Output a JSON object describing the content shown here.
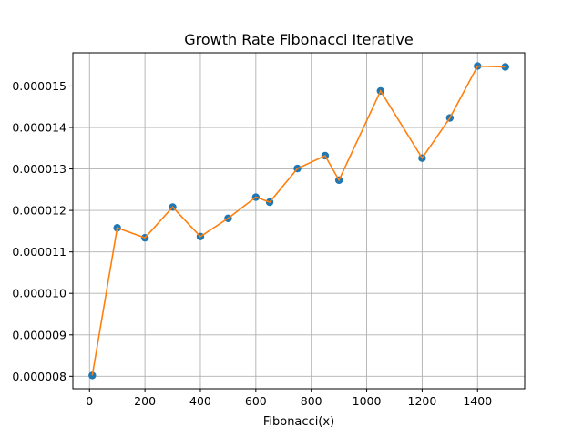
{
  "chart_data": {
    "type": "scatter",
    "title": "Growth Rate Fibonacci Iterative",
    "xlabel": "Fibonacci(x)",
    "ylabel": "",
    "xlim": [
      -60,
      1570
    ],
    "ylim": [
      7.7e-06,
      1.58e-05
    ],
    "xticks": [
      0,
      200,
      400,
      600,
      800,
      1000,
      1200,
      1400
    ],
    "xtick_labels": [
      "0",
      "200",
      "400",
      "600",
      "800",
      "1000",
      "1200",
      "1400"
    ],
    "yticks": [
      8e-06,
      9e-06,
      1e-05,
      1.1e-05,
      1.2e-05,
      1.3e-05,
      1.4e-05,
      1.5e-05
    ],
    "ytick_labels": [
      "0.000008",
      "0.000009",
      "0.000010",
      "0.000011",
      "0.000012",
      "0.000013",
      "0.000014",
      "0.000015"
    ],
    "grid": true,
    "series": [
      {
        "marker_color": "#1f77b4",
        "line_color": "#ff7f0e",
        "x": [
          10,
          100,
          200,
          300,
          400,
          500,
          600,
          650,
          750,
          850,
          900,
          1050,
          1200,
          1300,
          1400,
          1500
        ],
        "y": [
          8.02e-06,
          1.158e-05,
          1.134e-05,
          1.208e-05,
          1.137e-05,
          1.181e-05,
          1.232e-05,
          1.22e-05,
          1.301e-05,
          1.332e-05,
          1.273e-05,
          1.488e-05,
          1.326e-05,
          1.423e-05,
          1.548e-05,
          1.546e-05
        ]
      }
    ]
  }
}
